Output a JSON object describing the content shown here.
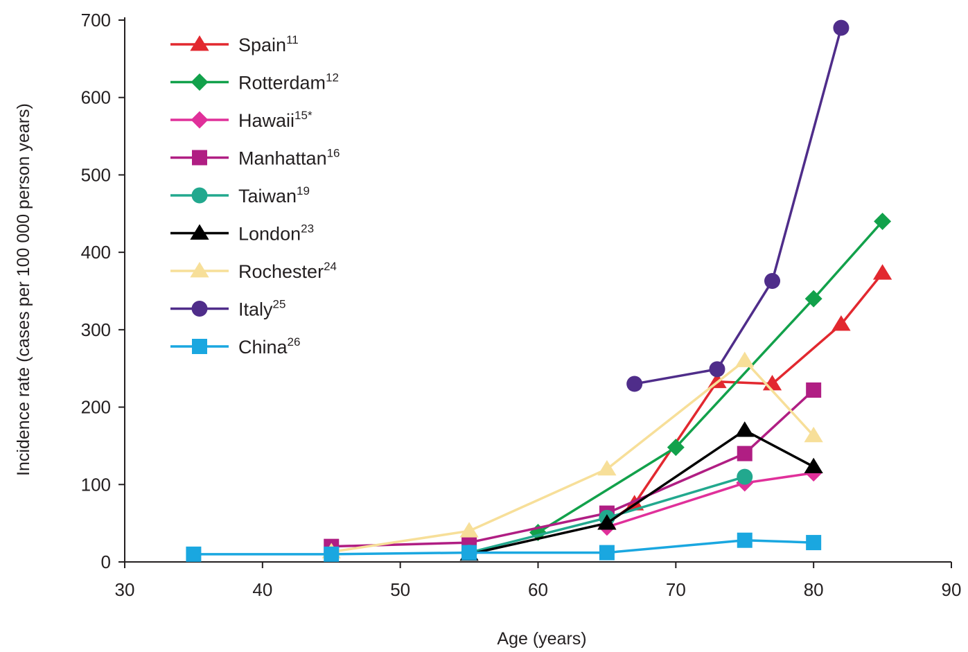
{
  "chart_data": {
    "type": "line",
    "title": "",
    "xlabel": "Age (years)",
    "ylabel": "Incidence rate (cases per 100 000 person years)",
    "xlim": [
      30,
      90
    ],
    "ylim": [
      0,
      700
    ],
    "xticks": [
      30,
      40,
      50,
      60,
      70,
      80,
      90
    ],
    "yticks": [
      0,
      100,
      200,
      300,
      400,
      500,
      600,
      700
    ],
    "grid": false,
    "legend_position": "top-left",
    "series": [
      {
        "name": "Spain",
        "ref": "11",
        "color": "#e2282f",
        "marker": "triangle",
        "x": [
          65,
          67,
          73,
          77,
          82,
          85
        ],
        "y": [
          50,
          75,
          233,
          230,
          307,
          373
        ]
      },
      {
        "name": "Rotterdam",
        "ref": "12",
        "color": "#12a14b",
        "marker": "diamond",
        "x": [
          60,
          70,
          80,
          85
        ],
        "y": [
          38,
          148,
          340,
          440
        ]
      },
      {
        "name": "Hawaii",
        "ref": "15*",
        "color": "#e0309a",
        "marker": "diamond",
        "x": [
          65,
          75,
          80
        ],
        "y": [
          45,
          102,
          115
        ]
      },
      {
        "name": "Manhattan",
        "ref": "16",
        "color": "#b01e83",
        "marker": "square",
        "x": [
          45,
          55,
          65,
          75,
          80
        ],
        "y": [
          20,
          25,
          63,
          140,
          222
        ]
      },
      {
        "name": "Taiwan",
        "ref": "19",
        "color": "#22a88e",
        "marker": "circle",
        "x": [
          55,
          65,
          75
        ],
        "y": [
          12,
          57,
          110
        ]
      },
      {
        "name": "London",
        "ref": "23",
        "color": "#000000",
        "marker": "triangle",
        "x": [
          55,
          65,
          75,
          80
        ],
        "y": [
          10,
          50,
          170,
          123
        ]
      },
      {
        "name": "Rochester",
        "ref": "24",
        "color": "#f7df99",
        "marker": "triangle",
        "x": [
          45,
          55,
          65,
          75,
          80
        ],
        "y": [
          13,
          40,
          120,
          260,
          163
        ]
      },
      {
        "name": "Italy",
        "ref": "25",
        "color": "#4f2d8a",
        "marker": "circle",
        "x": [
          67,
          73,
          77,
          82
        ],
        "y": [
          230,
          249,
          363,
          690
        ]
      },
      {
        "name": "China",
        "ref": "26",
        "color": "#1aa7e0",
        "marker": "square",
        "x": [
          35,
          45,
          55,
          65,
          75,
          80
        ],
        "y": [
          10,
          10,
          12,
          12,
          28,
          25
        ]
      }
    ]
  }
}
